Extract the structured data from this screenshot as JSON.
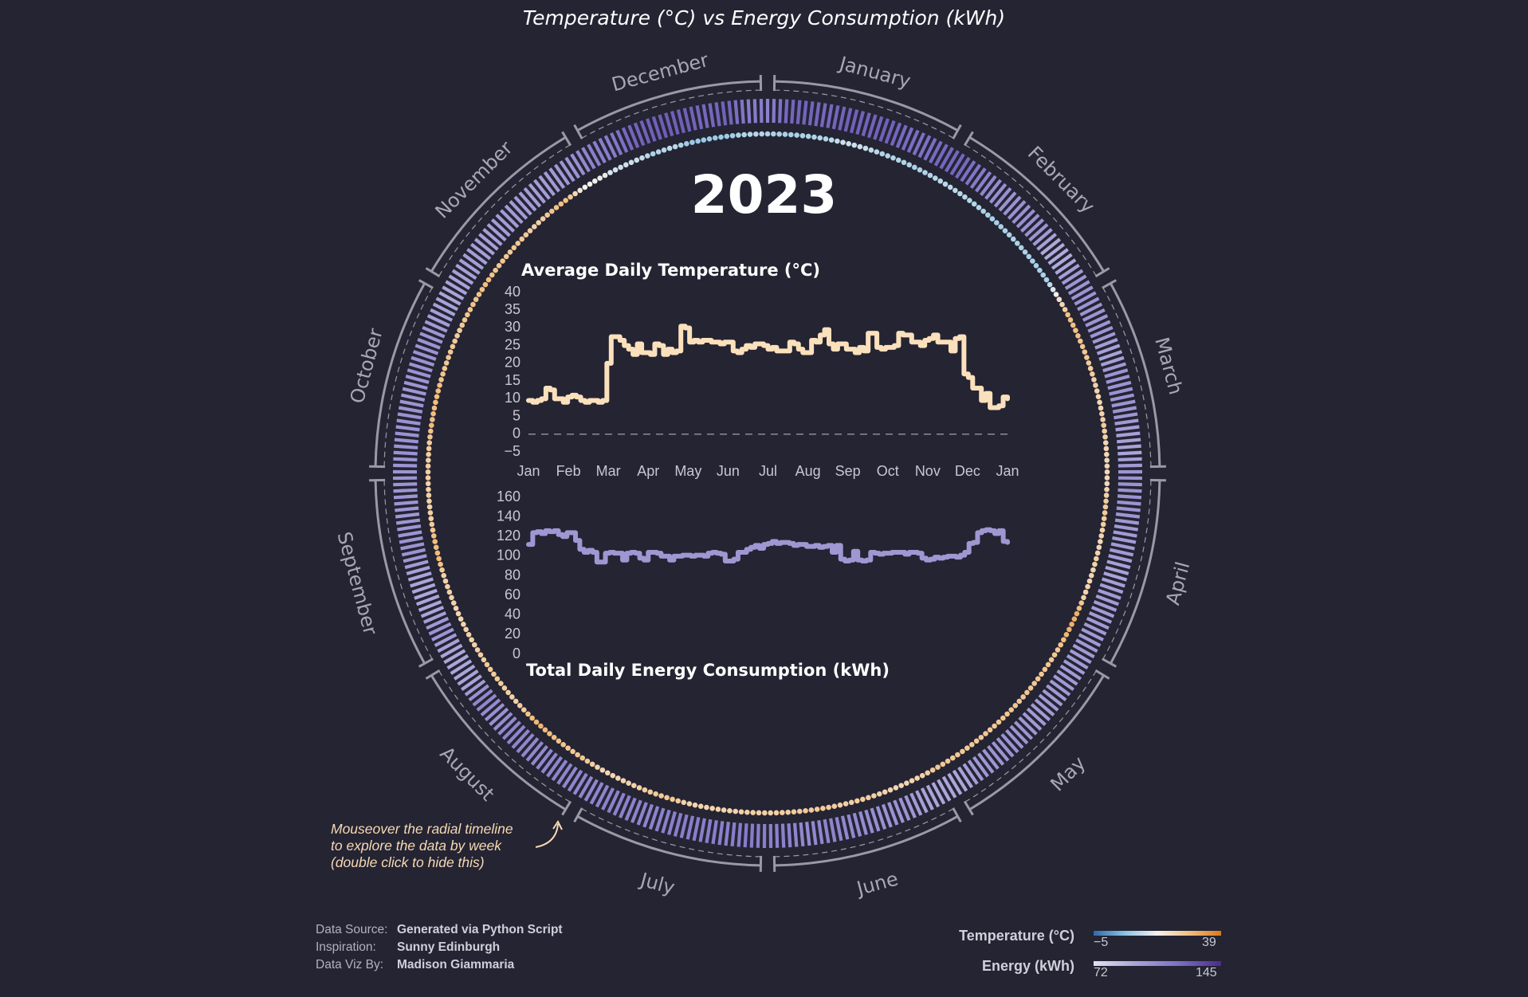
{
  "title": "Temperature (°C) vs Energy Consumption (kWh)",
  "year": "2023",
  "radial_months": [
    "January",
    "February",
    "March",
    "April",
    "May",
    "June",
    "July",
    "August",
    "September",
    "October",
    "November",
    "December"
  ],
  "annotation": [
    "Mouseover the radial timeline",
    "to explore the data by week",
    "(double click to hide this)"
  ],
  "credits": [
    {
      "label": "Data Source:",
      "value": "Generated via Python Script"
    },
    {
      "label": "Inspiration:",
      "value": "Sunny Edinburgh"
    },
    {
      "label": "Data Viz By:",
      "value": "Madison Giammaria"
    }
  ],
  "legend": {
    "temperature": {
      "label": "Temperature (°C)",
      "min": "−5",
      "max": "39",
      "colors": [
        "#2f6aa8",
        "#8cc4e4",
        "#f4f2ee",
        "#f2bf80",
        "#d97a1c"
      ]
    },
    "energy": {
      "label": "Energy (kWh)",
      "min": "72",
      "max": "145",
      "colors": [
        "#e2e0f2",
        "#a8a4d8",
        "#7c6fc4",
        "#4a2c8e"
      ]
    }
  },
  "colors": {
    "background": "#242433",
    "temp_line": "#fbe0bc",
    "energy_line": "#9f97d2",
    "ring_stroke": "#9a9aa6",
    "month_label": "#a8a8b4"
  },
  "chart_data": [
    {
      "type": "line",
      "title": "Average Daily Temperature (°C)",
      "x_tick_labels": [
        "Jan",
        "Feb",
        "Mar",
        "Apr",
        "May",
        "Jun",
        "Jul",
        "Aug",
        "Sep",
        "Oct",
        "Nov",
        "Dec",
        "Jan"
      ],
      "y_tick_labels": [
        "−5",
        "0",
        "5",
        "10",
        "15",
        "20",
        "25",
        "30",
        "35",
        "40"
      ],
      "ylim": [
        -5,
        40
      ],
      "reference_line_y": 0,
      "series": [
        {
          "values": [
            9.5,
            9,
            9.5,
            10,
            13,
            12.5,
            10,
            10,
            9,
            10.5,
            11,
            10.5,
            9.5,
            9,
            9.5,
            9.5,
            9,
            9.5,
            20,
            27.5,
            27.5,
            26.5,
            25,
            24,
            22.5,
            25.5,
            23,
            23,
            22.5,
            25.5,
            25,
            22.5,
            24,
            23,
            23.5,
            30.5,
            30,
            26,
            26.5,
            26,
            26.5,
            26.5,
            26,
            26,
            25.5,
            26,
            26,
            23.5,
            23,
            24,
            25,
            24.5,
            25.5,
            25.5,
            25,
            24,
            24.5,
            23.5,
            23.5,
            23.5,
            26,
            25.5,
            24,
            23,
            23,
            26.5,
            26,
            28,
            29.5,
            25.5,
            24,
            25.5,
            25.5,
            24,
            24,
            23,
            24.5,
            23.5,
            28.5,
            28.5,
            24.5,
            24,
            24.5,
            24.5,
            25,
            28.5,
            28,
            28,
            26,
            26,
            25,
            26.5,
            27,
            28,
            26,
            26,
            26,
            23.5,
            27,
            27.5,
            17,
            16,
            13,
            13,
            9.5,
            11.5,
            7.5,
            7.5,
            8,
            10.5,
            10
          ]
        }
      ]
    },
    {
      "type": "line",
      "title": "Total Daily Energy Consumption (kWh)",
      "y_tick_labels": [
        "0",
        "20",
        "40",
        "60",
        "80",
        "100",
        "120",
        "140",
        "160"
      ],
      "ylim": [
        0,
        160
      ],
      "series": [
        {
          "values": [
            112,
            124,
            125,
            123,
            126,
            125,
            126,
            122,
            120,
            124,
            124,
            116,
            107,
            104,
            106,
            104,
            94,
            94,
            103,
            104,
            103,
            103,
            96,
            103,
            104,
            103,
            98,
            96,
            104,
            104,
            103,
            100,
            100,
            96,
            100,
            100,
            101,
            101,
            100,
            101,
            101,
            100,
            103,
            104,
            103,
            102,
            95,
            95,
            97,
            104,
            104,
            107,
            109,
            111,
            108,
            112,
            113,
            115,
            113,
            114,
            114,
            113,
            111,
            112,
            112,
            110,
            110,
            111,
            109,
            110,
            111,
            104,
            111,
            97,
            95,
            96,
            105,
            96,
            95,
            96,
            104,
            103,
            102,
            103,
            103,
            104,
            104,
            104,
            102,
            104,
            104,
            103,
            98,
            96,
            97,
            99,
            98,
            99,
            100,
            100,
            99,
            101,
            104,
            113,
            114,
            124,
            126,
            127,
            126,
            123,
            126,
            115,
            114
          ]
        }
      ]
    }
  ]
}
